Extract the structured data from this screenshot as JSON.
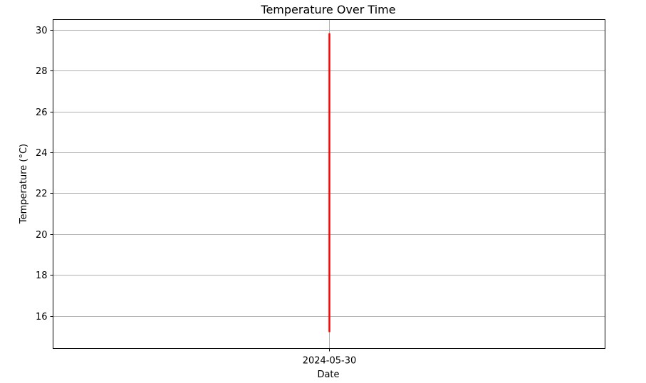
{
  "chart_data": {
    "type": "line",
    "title": "Temperature Over Time",
    "xlabel": "Date",
    "ylabel": "Temperature (°C)",
    "x_tick_labels": [
      "2024-05-30"
    ],
    "y_ticks": [
      16,
      18,
      20,
      22,
      24,
      26,
      28,
      30
    ],
    "y_tick_labels": [
      "16",
      "18",
      "20",
      "22",
      "24",
      "26",
      "28",
      "30"
    ],
    "ylim": [
      14.4,
      30.5
    ],
    "grid": true,
    "series": [
      {
        "color": "#ff0000",
        "x": [
          "2024-05-30",
          "2024-05-30",
          "2024-05-30",
          "2024-05-30",
          "2024-05-30",
          "2024-05-30",
          "2024-05-30",
          "2024-05-30",
          "2024-05-30",
          "2024-05-30"
        ],
        "values": [
          15.2,
          29.8,
          16.5,
          28.7,
          17.2,
          28.2,
          18.0,
          27.5,
          16.8,
          28.9
        ]
      }
    ]
  }
}
